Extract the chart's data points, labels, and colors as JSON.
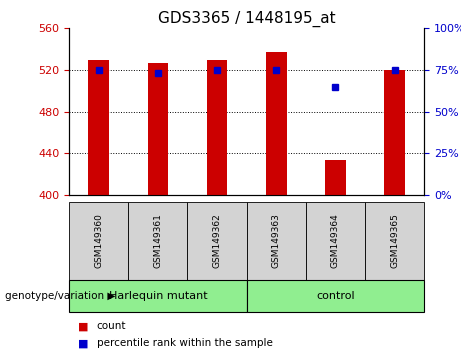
{
  "title": "GDS3365 / 1448195_at",
  "samples": [
    "GSM149360",
    "GSM149361",
    "GSM149362",
    "GSM149363",
    "GSM149364",
    "GSM149365"
  ],
  "bar_values": [
    530,
    527,
    530,
    537,
    433,
    520
  ],
  "percentile_values": [
    75,
    73,
    75,
    75,
    65,
    75
  ],
  "ylim_left": [
    400,
    560
  ],
  "ylim_right": [
    0,
    100
  ],
  "yticks_left": [
    400,
    440,
    480,
    520,
    560
  ],
  "yticks_right": [
    0,
    25,
    50,
    75,
    100
  ],
  "bar_color": "#cc0000",
  "dot_color": "#0000cc",
  "bar_bottom": 400,
  "group1_label": "Harlequin mutant",
  "group2_label": "control",
  "group_bg_color": "#90ee90",
  "sample_bg_color": "#d3d3d3",
  "legend_count_label": "count",
  "legend_pct_label": "percentile rank within the sample",
  "xlabel_group": "genotype/variation",
  "title_fontsize": 11,
  "tick_fontsize": 8,
  "bar_width": 0.35
}
